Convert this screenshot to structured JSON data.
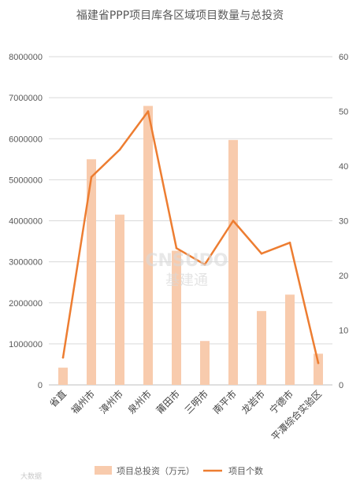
{
  "chart_data": {
    "type": "bar",
    "title": "福建省PPP项目库各区域项目数量与总投资",
    "categories": [
      "省直",
      "福州市",
      "漳州市",
      "泉州市",
      "莆田市",
      "三明市",
      "南平市",
      "龙岩市",
      "宁德市",
      "平潭综合实验区"
    ],
    "series": [
      {
        "name": "项目总投资（万元）",
        "type": "bar",
        "axis": "left",
        "color": "#f8cbad",
        "values": [
          420000,
          5500000,
          4150000,
          6800000,
          3270000,
          1070000,
          5970000,
          1800000,
          2200000,
          760000
        ]
      },
      {
        "name": "项目个数",
        "type": "line",
        "axis": "right",
        "color": "#ed7d31",
        "values": [
          5,
          38,
          43,
          50,
          25,
          22,
          30,
          24,
          26,
          4
        ]
      }
    ],
    "ylim_left": [
      0,
      8000000
    ],
    "ylim_right": [
      0,
      60
    ],
    "yticks_left": [
      "0",
      "1000000",
      "2000000",
      "3000000",
      "4000000",
      "5000000",
      "6000000",
      "7000000",
      "8000000"
    ],
    "yticks_right": [
      "0",
      "10",
      "20",
      "30",
      "40",
      "50",
      "60"
    ],
    "grid": true,
    "legend_position": "bottom"
  },
  "watermark": {
    "logo_text": "CNSUDO",
    "logo_subtext": "基建通",
    "corner_text": "大数据"
  }
}
